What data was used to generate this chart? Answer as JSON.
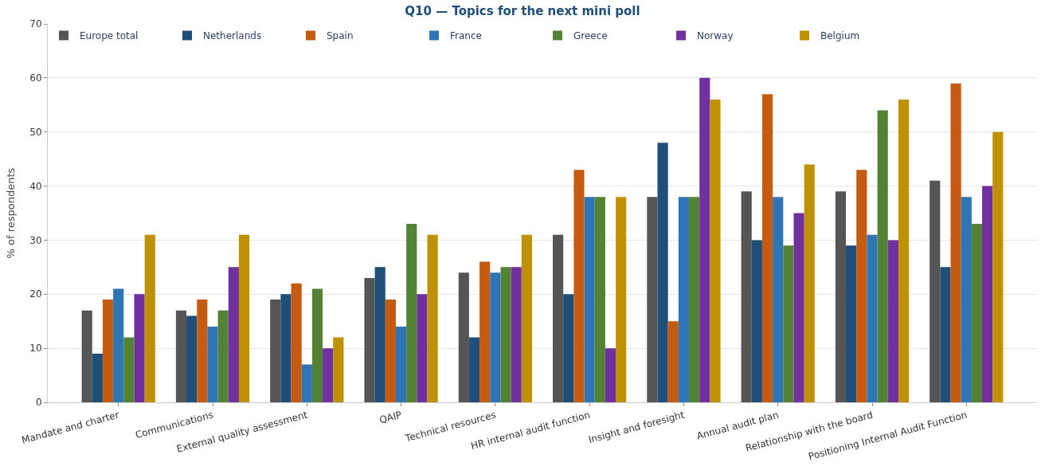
{
  "chart_data": {
    "type": "bar",
    "title": "Q10 — Topics for the next mini poll",
    "ylabel": "% of respondents",
    "categories": [
      "Mandate and charter",
      "Communications",
      "External quality assessment",
      "QAIP",
      "Technical resources",
      "HR internal audit function",
      "Insight and foresight",
      "Annual audit plan",
      "Relationship with the board",
      "Positioning Internal Audit Function"
    ],
    "series": [
      {
        "name": "Europe total",
        "color": "#555555",
        "values": [
          17,
          17,
          19,
          23,
          24,
          31,
          38,
          39,
          39,
          41
        ]
      },
      {
        "name": "Netherlands",
        "color": "#1f4e79",
        "values": [
          9,
          16,
          20,
          25,
          12,
          20,
          48,
          30,
          29,
          25
        ]
      },
      {
        "name": "Spain",
        "color": "#c55a11",
        "values": [
          19,
          19,
          22,
          19,
          26,
          43,
          15,
          57,
          43,
          59
        ]
      },
      {
        "name": "France",
        "color": "#2e75b6",
        "values": [
          21,
          14,
          7,
          14,
          24,
          38,
          38,
          38,
          31,
          38
        ]
      },
      {
        "name": "Greece",
        "color": "#548235",
        "values": [
          12,
          17,
          21,
          33,
          25,
          38,
          38,
          29,
          54,
          33
        ]
      },
      {
        "name": "Norway",
        "color": "#7030a0",
        "values": [
          20,
          25,
          10,
          20,
          25,
          10,
          60,
          35,
          30,
          40
        ]
      },
      {
        "name": "Belgium",
        "color": "#bf9000",
        "values": [
          31,
          31,
          12,
          31,
          31,
          38,
          56,
          44,
          56,
          50
        ]
      }
    ],
    "ylim": [
      0,
      70
    ],
    "yticks": [
      0,
      10,
      20,
      30,
      40,
      50,
      60,
      70
    ],
    "grid": "y",
    "legend": "top left"
  }
}
